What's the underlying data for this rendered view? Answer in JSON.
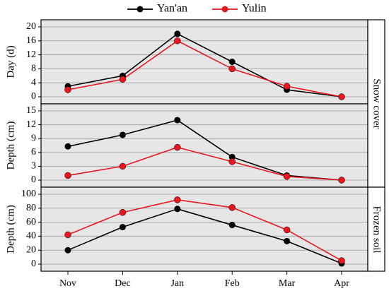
{
  "colors": {
    "yanan": "#000000",
    "yulin": "#e8171f",
    "panel_bg": "#e6e6e6",
    "grid": "#a9a9a9"
  },
  "legend": [
    "Yan'an",
    "Yulin"
  ],
  "chart_data": [
    {
      "type": "line",
      "categories": [
        "Nov",
        "Dec",
        "Jan",
        "Feb",
        "Mar",
        "Apr"
      ],
      "ylabel": "Day (d)",
      "ylim": [
        0,
        20
      ],
      "yticks": [
        0,
        4,
        8,
        12,
        16,
        20
      ],
      "side_label": "Snow cover",
      "grid": true,
      "series": [
        {
          "name": "Yan'an",
          "values": [
            3,
            6,
            18,
            10,
            2,
            0
          ]
        },
        {
          "name": "Yulin",
          "values": [
            2,
            5,
            16,
            8,
            3,
            0
          ]
        }
      ]
    },
    {
      "type": "line",
      "categories": [
        "Nov",
        "Dec",
        "Jan",
        "Feb",
        "Mar",
        "Apr"
      ],
      "ylabel": "Depth (cm)",
      "ylim": [
        0,
        15
      ],
      "yticks": [
        0,
        3,
        6,
        9,
        12,
        15
      ],
      "side_label": "Snow cover",
      "grid": true,
      "series": [
        {
          "name": "Yan'an",
          "values": [
            7.3,
            9.8,
            13,
            5,
            1,
            0
          ]
        },
        {
          "name": "Yulin",
          "values": [
            1,
            3,
            7.1,
            4,
            0.8,
            0
          ]
        }
      ]
    },
    {
      "type": "line",
      "categories": [
        "Nov",
        "Dec",
        "Jan",
        "Feb",
        "Mar",
        "Apr"
      ],
      "ylabel": "Depth (cm)",
      "ylim": [
        0,
        100
      ],
      "yticks": [
        0,
        20,
        40,
        60,
        80,
        100
      ],
      "side_label": "Frozen soil",
      "grid": true,
      "series": [
        {
          "name": "Yan'an",
          "values": [
            20,
            53,
            79,
            56,
            33,
            1
          ]
        },
        {
          "name": "Yulin",
          "values": [
            42,
            74,
            92,
            81,
            49,
            5
          ]
        }
      ]
    }
  ]
}
